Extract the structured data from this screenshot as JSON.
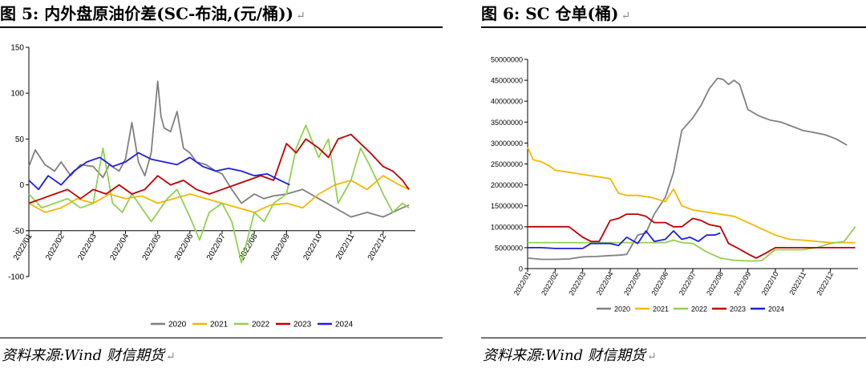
{
  "figures": [
    {
      "title": "图 5: 内外盘原油价差(SC-布油,(元/桶))",
      "return_mark": "↵",
      "source": "资料来源:Wind 财信期货"
    },
    {
      "title": "图 6: SC 仓单(桶)",
      "return_mark": "↵",
      "source": "资料来源:Wind 财信期货"
    }
  ],
  "chart_data": [
    {
      "type": "line",
      "title": "",
      "xlabel": "",
      "ylabel": "",
      "ylim": [
        -100,
        150
      ],
      "yticks": [
        "150",
        "100",
        "50",
        "0",
        "-50",
        "-100"
      ],
      "xticks": [
        "2022/01",
        "2022/02",
        "2022/03",
        "2022/04",
        "2022/05",
        "2022/06",
        "2022/07",
        "2022/08",
        "2022/09",
        "2022/10",
        "2022/11",
        "2022/12"
      ],
      "legend_position": "bottom",
      "series": [
        {
          "name": "2020",
          "color": "#808080",
          "x": [
            0,
            0.2,
            0.5,
            0.8,
            1,
            1.3,
            1.6,
            2,
            2.3,
            2.5,
            2.8,
            3,
            3.2,
            3.4,
            3.6,
            3.8,
            4,
            4.1,
            4.2,
            4.4,
            4.6,
            4.8,
            5,
            5.2,
            5.5,
            5.8,
            6,
            6.3,
            6.6,
            7,
            7.3,
            7.6,
            8,
            8.5,
            9,
            9.5,
            10,
            10.5,
            11,
            11.3,
            11.6,
            11.8
          ],
          "values": [
            20,
            38,
            22,
            15,
            25,
            10,
            22,
            20,
            8,
            22,
            15,
            28,
            68,
            25,
            10,
            35,
            113,
            75,
            62,
            58,
            80,
            40,
            35,
            25,
            22,
            15,
            12,
            -5,
            -20,
            -10,
            -15,
            -12,
            -10,
            -5,
            -15,
            -25,
            -35,
            -30,
            -35,
            -30,
            -25,
            -22
          ]
        },
        {
          "name": "2021",
          "color": "#f4b800",
          "x": [
            0,
            0.5,
            1,
            1.5,
            2,
            2.5,
            3,
            3.5,
            4,
            4.5,
            5,
            5.5,
            6,
            6.5,
            7,
            7.5,
            8,
            8.5,
            9,
            9.5,
            10,
            10.5,
            11,
            11.5,
            11.8
          ],
          "values": [
            -20,
            -30,
            -25,
            -15,
            -20,
            -10,
            -15,
            -12,
            -20,
            -15,
            -10,
            -15,
            -20,
            -25,
            -30,
            -22,
            -20,
            -25,
            -10,
            0,
            5,
            -5,
            10,
            0,
            -5
          ]
        },
        {
          "name": "2022",
          "color": "#92d050",
          "x": [
            0,
            0.4,
            0.8,
            1.2,
            1.6,
            2,
            2.3,
            2.6,
            2.9,
            3.2,
            3.5,
            3.8,
            4,
            4.3,
            4.6,
            5,
            5.3,
            5.6,
            6,
            6.3,
            6.6,
            7,
            7.3,
            7.6,
            8,
            8.3,
            8.6,
            9,
            9.3,
            9.6,
            10,
            10.3,
            10.6,
            11,
            11.3,
            11.6,
            11.8
          ],
          "values": [
            -10,
            -25,
            -20,
            -15,
            -25,
            -20,
            40,
            -20,
            -30,
            -10,
            -25,
            -40,
            -30,
            -15,
            -5,
            -35,
            -60,
            -30,
            -20,
            -40,
            -85,
            -30,
            -40,
            -20,
            -10,
            40,
            65,
            30,
            50,
            -20,
            5,
            40,
            20,
            -10,
            -30,
            -20,
            -25
          ]
        },
        {
          "name": "2023",
          "color": "#c00000",
          "x": [
            0,
            0.4,
            0.8,
            1.2,
            1.6,
            2,
            2.4,
            2.8,
            3.2,
            3.6,
            4,
            4.4,
            4.8,
            5.2,
            5.6,
            6,
            6.4,
            6.8,
            7.2,
            7.6,
            8,
            8.3,
            8.6,
            9,
            9.3,
            9.6,
            10,
            10.3,
            10.6,
            11,
            11.3,
            11.6,
            11.8
          ],
          "values": [
            -20,
            -15,
            -10,
            -5,
            -15,
            -5,
            -10,
            0,
            -10,
            -5,
            10,
            0,
            5,
            -5,
            -10,
            -5,
            0,
            5,
            10,
            5,
            45,
            35,
            50,
            40,
            30,
            50,
            55,
            45,
            35,
            20,
            15,
            5,
            -5
          ]
        },
        {
          "name": "2024",
          "color": "#1f1fe0",
          "x": [
            0,
            0.3,
            0.6,
            1,
            1.4,
            1.8,
            2.2,
            2.6,
            3,
            3.4,
            3.8,
            4.2,
            4.6,
            5,
            5.4,
            5.8,
            6.2,
            6.6,
            7,
            7.4,
            7.8,
            8.1
          ],
          "values": [
            5,
            -5,
            10,
            0,
            15,
            25,
            30,
            20,
            25,
            35,
            28,
            25,
            22,
            30,
            20,
            15,
            18,
            15,
            10,
            12,
            5,
            0
          ]
        }
      ]
    },
    {
      "type": "line",
      "title": "",
      "xlabel": "",
      "ylabel": "",
      "ylim": [
        0,
        50000000
      ],
      "yticks": [
        "50000000",
        "45000000",
        "40000000",
        "35000000",
        "30000000",
        "25000000",
        "20000000",
        "15000000",
        "10000000",
        "5000000",
        "0"
      ],
      "xticks": [
        "2022/01",
        "2022/02",
        "2022/03",
        "2022/04",
        "2022/05",
        "2022/06",
        "2022/07",
        "2022/08",
        "2022/09",
        "2022/10",
        "2022/11",
        "2022/12"
      ],
      "legend_position": "bottom",
      "series": [
        {
          "name": "2020",
          "color": "#808080",
          "x": [
            0,
            0.5,
            1,
            1.5,
            2,
            2.5,
            3,
            3.3,
            3.6,
            4,
            4.3,
            4.6,
            5,
            5.3,
            5.6,
            6,
            6.3,
            6.6,
            6.9,
            7.1,
            7.3,
            7.5,
            7.7,
            8,
            8.4,
            8.8,
            9.2,
            9.6,
            10,
            10.4,
            10.8,
            11.2,
            11.6
          ],
          "values": [
            2500000,
            2200000,
            2200000,
            2300000,
            2800000,
            2900000,
            3100000,
            3200000,
            3400000,
            8000000,
            8500000,
            13000000,
            17000000,
            23000000,
            33000000,
            36000000,
            39000000,
            43000000,
            45500000,
            45200000,
            44000000,
            45000000,
            44000000,
            38000000,
            36500000,
            35500000,
            35000000,
            34000000,
            33000000,
            32500000,
            32000000,
            31000000,
            29500000
          ]
        },
        {
          "name": "2021",
          "color": "#f4b800",
          "x": [
            0,
            0.2,
            0.5,
            0.8,
            1,
            1.5,
            2,
            2.5,
            3,
            3.3,
            3.6,
            4,
            4.5,
            5,
            5.3,
            5.6,
            6,
            6.5,
            7,
            7.5,
            8,
            8.5,
            9,
            9.5,
            10,
            10.5,
            11,
            11.5,
            11.9
          ],
          "values": [
            29000000,
            26000000,
            25500000,
            24500000,
            23500000,
            23000000,
            22500000,
            22000000,
            21500000,
            18000000,
            17500000,
            17500000,
            17000000,
            16000000,
            19000000,
            15000000,
            14000000,
            13500000,
            13000000,
            12500000,
            11000000,
            9500000,
            8000000,
            7000000,
            6800000,
            6500000,
            6200000,
            6200000,
            6200000
          ]
        },
        {
          "name": "2022",
          "color": "#92d050",
          "x": [
            0,
            0.5,
            1,
            1.5,
            2,
            2.5,
            3,
            3.5,
            4,
            4.5,
            5,
            5.3,
            5.6,
            6,
            6.5,
            7,
            7.5,
            8,
            8.5,
            9,
            9.5,
            10,
            10.5,
            11,
            11.5,
            11.9
          ],
          "values": [
            6200000,
            6200000,
            6200000,
            6200000,
            6200000,
            6200000,
            6200000,
            6200000,
            6200000,
            6200000,
            6200000,
            6800000,
            6200000,
            6000000,
            4000000,
            2500000,
            2000000,
            1800000,
            1900000,
            4500000,
            4500000,
            4500000,
            5000000,
            6000000,
            6500000,
            10000000
          ]
        },
        {
          "name": "2023",
          "color": "#c00000",
          "x": [
            0,
            0.5,
            1,
            1.5,
            2,
            2.3,
            2.6,
            3,
            3.3,
            3.6,
            4,
            4.3,
            4.6,
            5,
            5.3,
            5.6,
            6,
            6.3,
            6.6,
            7,
            7.3,
            7.6,
            8,
            8.3,
            8.6,
            9,
            9.5,
            10,
            10.5,
            11,
            11.5,
            11.9
          ],
          "values": [
            10000000,
            10000000,
            10000000,
            10000000,
            7500000,
            6500000,
            6500000,
            11500000,
            12000000,
            13000000,
            13000000,
            12500000,
            11000000,
            11000000,
            10000000,
            10000000,
            12000000,
            11500000,
            10500000,
            10000000,
            6000000,
            5000000,
            3500000,
            2500000,
            3500000,
            5000000,
            5000000,
            5000000,
            5000000,
            5000000,
            5000000,
            5000000
          ]
        },
        {
          "name": "2024",
          "color": "#1f1fe0",
          "x": [
            0,
            0.5,
            1,
            1.5,
            2,
            2.3,
            2.6,
            3,
            3.3,
            3.6,
            4,
            4.3,
            4.6,
            5,
            5.3,
            5.6,
            5.9,
            6.2,
            6.5,
            6.8,
            7
          ],
          "values": [
            5000000,
            5000000,
            4800000,
            4800000,
            4800000,
            6000000,
            6000000,
            6000000,
            5500000,
            7500000,
            6000000,
            9000000,
            6500000,
            7000000,
            9000000,
            7000000,
            7500000,
            6500000,
            8000000,
            8000000,
            8500000
          ]
        }
      ]
    }
  ]
}
